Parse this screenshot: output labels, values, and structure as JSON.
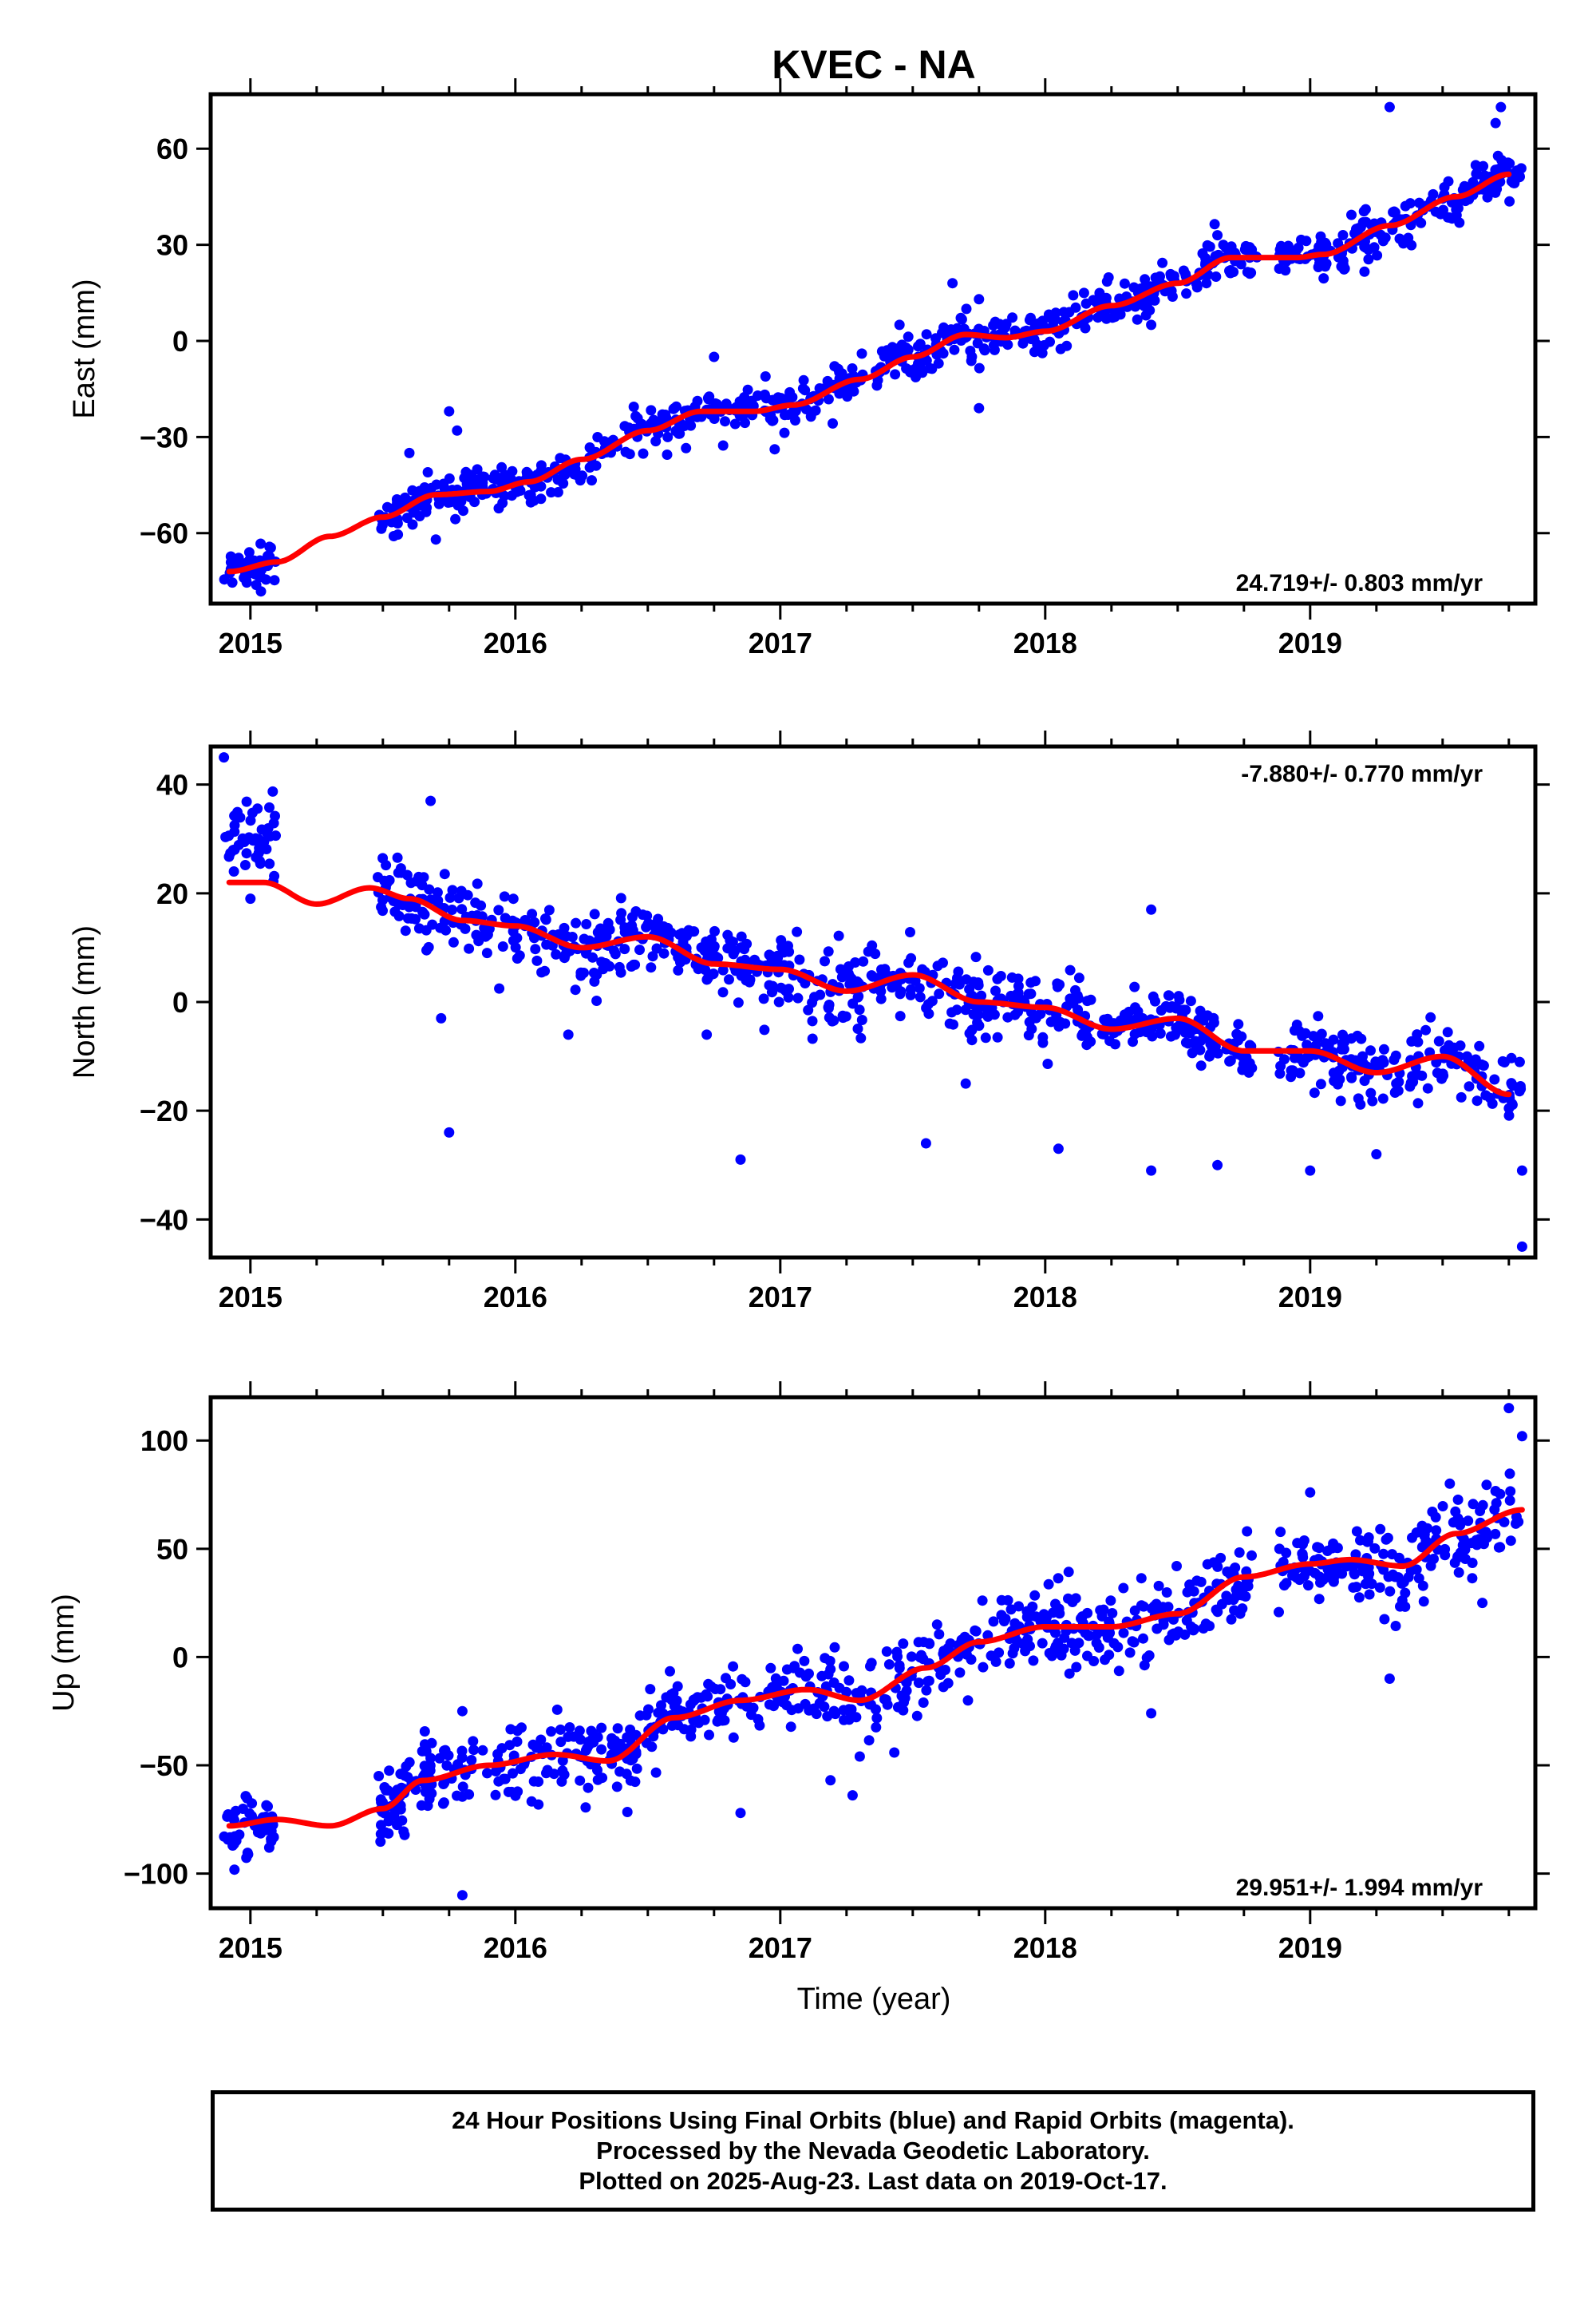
{
  "chart_data": {
    "title": "KVEC - NA",
    "type": "scatter",
    "xlabel": "Time (year)",
    "xlim": [
      2014.85,
      2019.85
    ],
    "x_ticks": [
      2015,
      2016,
      2017,
      2018,
      2019
    ],
    "x_tick_labels": [
      "2015",
      "2016",
      "2017",
      "2018",
      "2019"
    ],
    "point_color": "#0000ff",
    "fit_color": "#ff0000",
    "panels": [
      {
        "name": "east",
        "ylabel": "East (mm)",
        "ylim": [
          -82,
          77
        ],
        "y_ticks": [
          60,
          30,
          0,
          -30,
          -60
        ],
        "y_tick_labels": [
          "60",
          "30",
          "0",
          "−30",
          "−60"
        ],
        "rate_text": "24.719+/- 0.803 mm/yr",
        "rate_position": "bottom-right",
        "fit_knots": [
          [
            2014.92,
            -72
          ],
          [
            2015.1,
            -69
          ],
          [
            2015.3,
            -61
          ],
          [
            2015.5,
            -55
          ],
          [
            2015.7,
            -48
          ],
          [
            2015.9,
            -47
          ],
          [
            2016.05,
            -44
          ],
          [
            2016.25,
            -37
          ],
          [
            2016.5,
            -28
          ],
          [
            2016.7,
            -22
          ],
          [
            2016.9,
            -22
          ],
          [
            2017.05,
            -20
          ],
          [
            2017.3,
            -12
          ],
          [
            2017.5,
            -5
          ],
          [
            2017.7,
            2
          ],
          [
            2017.85,
            1
          ],
          [
            2018.0,
            3
          ],
          [
            2018.25,
            11
          ],
          [
            2018.5,
            18
          ],
          [
            2018.7,
            26
          ],
          [
            2018.95,
            26
          ],
          [
            2019.05,
            27
          ],
          [
            2019.3,
            36
          ],
          [
            2019.55,
            45
          ],
          [
            2019.75,
            52
          ]
        ],
        "scatter_points": 900,
        "scatter_spread": 3.2,
        "outliers": [
          [
            2015.6,
            -35
          ],
          [
            2015.7,
            -62
          ],
          [
            2015.75,
            -22
          ],
          [
            2015.78,
            -28
          ],
          [
            2016.75,
            -5
          ],
          [
            2017.45,
            5
          ],
          [
            2017.65,
            18
          ],
          [
            2017.75,
            -21
          ],
          [
            2017.75,
            13
          ],
          [
            2018.4,
            5
          ],
          [
            2019.3,
            73
          ],
          [
            2019.72,
            73
          ],
          [
            2019.7,
            68
          ],
          [
            2018.65,
            33
          ]
        ]
      },
      {
        "name": "north",
        "ylabel": "North (mm)",
        "ylim": [
          -47,
          47
        ],
        "y_ticks": [
          40,
          20,
          0,
          -20,
          -40
        ],
        "y_tick_labels": [
          "40",
          "20",
          "0",
          "−20",
          "−40"
        ],
        "rate_text": "-7.880+/- 0.770 mm/yr",
        "rate_position": "top-right",
        "fit_knots": [
          [
            2014.92,
            22
          ],
          [
            2015.05,
            22
          ],
          [
            2015.25,
            18
          ],
          [
            2015.45,
            21
          ],
          [
            2015.6,
            19
          ],
          [
            2015.8,
            15
          ],
          [
            2016.0,
            14
          ],
          [
            2016.25,
            10
          ],
          [
            2016.5,
            12
          ],
          [
            2016.75,
            7
          ],
          [
            2017.0,
            6
          ],
          [
            2017.25,
            2
          ],
          [
            2017.5,
            5
          ],
          [
            2017.75,
            0
          ],
          [
            2018.0,
            -1
          ],
          [
            2018.25,
            -5
          ],
          [
            2018.5,
            -3
          ],
          [
            2018.75,
            -9
          ],
          [
            2019.0,
            -9
          ],
          [
            2019.25,
            -13
          ],
          [
            2019.5,
            -10
          ],
          [
            2019.75,
            -17
          ]
        ],
        "scatter_points": 900,
        "scatter_spread": 3.0,
        "early_cluster": {
          "x": [
            2014.9,
            2015.1
          ],
          "y_center": 31,
          "spread": 3.5
        },
        "outliers": [
          [
            2014.9,
            45
          ],
          [
            2015.0,
            19
          ],
          [
            2015.68,
            37
          ],
          [
            2015.72,
            -3
          ],
          [
            2015.75,
            -24
          ],
          [
            2016.2,
            -6
          ],
          [
            2016.85,
            -29
          ],
          [
            2017.55,
            -26
          ],
          [
            2017.7,
            -15
          ],
          [
            2018.05,
            -27
          ],
          [
            2018.4,
            -31
          ],
          [
            2018.4,
            17
          ],
          [
            2018.65,
            -30
          ],
          [
            2019.0,
            -31
          ],
          [
            2019.25,
            -28
          ],
          [
            2019.8,
            -45
          ],
          [
            2019.8,
            -31
          ]
        ]
      },
      {
        "name": "up",
        "ylabel": "Up (mm)",
        "ylim": [
          -116,
          120
        ],
        "y_ticks": [
          100,
          50,
          0,
          -50,
          -100
        ],
        "y_tick_labels": [
          "100",
          "50",
          "0",
          "−50",
          "−100"
        ],
        "rate_text": "29.951+/- 1.994 mm/yr",
        "rate_position": "bottom-right",
        "fit_knots": [
          [
            2014.92,
            -78
          ],
          [
            2015.1,
            -75
          ],
          [
            2015.3,
            -78
          ],
          [
            2015.5,
            -70
          ],
          [
            2015.65,
            -57
          ],
          [
            2015.9,
            -50
          ],
          [
            2016.15,
            -45
          ],
          [
            2016.35,
            -48
          ],
          [
            2016.6,
            -28
          ],
          [
            2016.85,
            -20
          ],
          [
            2017.1,
            -15
          ],
          [
            2017.3,
            -20
          ],
          [
            2017.55,
            -5
          ],
          [
            2017.75,
            7
          ],
          [
            2018.0,
            14
          ],
          [
            2018.25,
            14
          ],
          [
            2018.5,
            20
          ],
          [
            2018.75,
            37
          ],
          [
            2019.0,
            43
          ],
          [
            2019.15,
            45
          ],
          [
            2019.35,
            42
          ],
          [
            2019.55,
            57
          ],
          [
            2019.8,
            68
          ]
        ],
        "scatter_points": 900,
        "scatter_spread": 9.0,
        "outliers": [
          [
            2015.8,
            -110
          ],
          [
            2015.8,
            -25
          ],
          [
            2016.85,
            -72
          ],
          [
            2018.4,
            -26
          ],
          [
            2019.3,
            -10
          ],
          [
            2019.65,
            25
          ],
          [
            2019.75,
            115
          ],
          [
            2019.8,
            102
          ],
          [
            2019.0,
            76
          ]
        ]
      }
    ]
  },
  "footer": {
    "line1": "24 Hour Positions Using Final Orbits (blue) and Rapid Orbits (magenta).",
    "line2": "Processed by the Nevada Geodetic Laboratory.",
    "line3": "Plotted on 2025-Aug-23. Last data on 2019-Oct-17."
  }
}
